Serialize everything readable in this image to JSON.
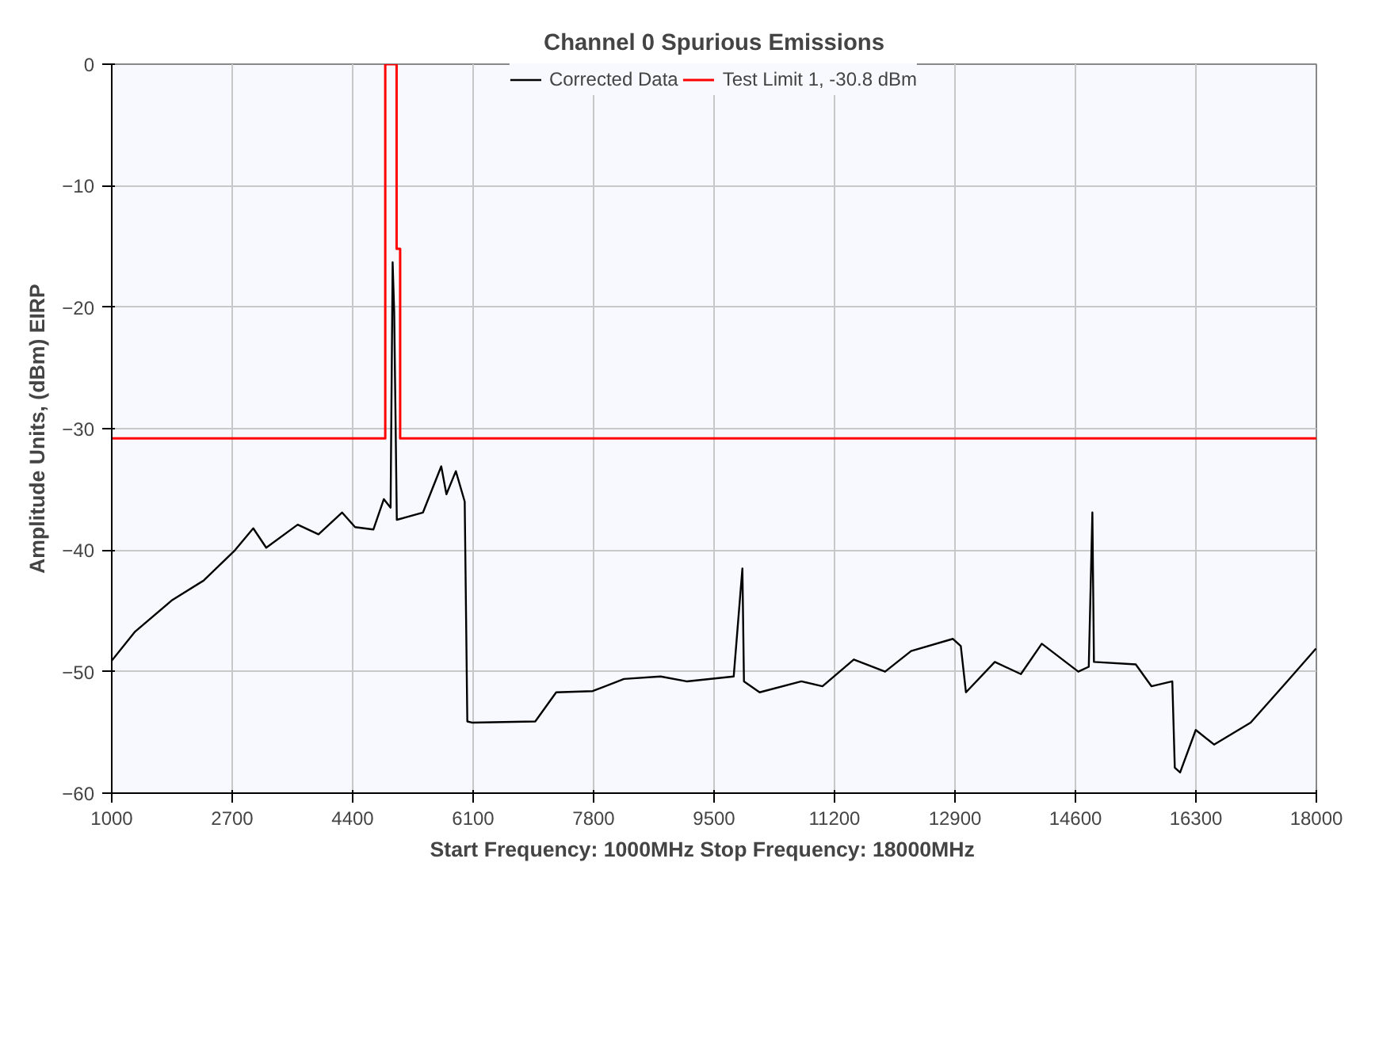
{
  "chart_data": {
    "type": "line",
    "title": "Channel 0 Spurious Emissions",
    "xlabel": "Start Frequency: 1000MHz     Stop Frequency: 18000MHz",
    "ylabel": "Amplitude Units, (dBm) EIRP",
    "xlim": [
      1000,
      18000
    ],
    "ylim": [
      -60,
      0
    ],
    "xticks": [
      1000,
      2700,
      4400,
      6100,
      7800,
      9500,
      11200,
      12900,
      14600,
      16300,
      18000
    ],
    "yticks": [
      -60,
      -50,
      -40,
      -30,
      -20,
      -10,
      0
    ],
    "grid": true,
    "legend": "top",
    "line_style": "solid",
    "marker": "none",
    "series": [
      {
        "name": "Corrected Data",
        "color": "#000000",
        "x": [
          1000,
          1330,
          1855,
          2297,
          2740,
          2997,
          3180,
          3624,
          3918,
          4250,
          4434,
          4692,
          4840,
          4935,
          4964,
          4986,
          5023,
          5392,
          5650,
          5723,
          5856,
          5981,
          6018,
          6092,
          6977,
          7272,
          7787,
          8229,
          8745,
          9113,
          9777,
          9900,
          9922,
          10143,
          10733,
          11030,
          11472,
          11914,
          12281,
          12871,
          12982,
          13055,
          13462,
          13830,
          14125,
          14640,
          14788,
          14839,
          14861,
          15451,
          15672,
          15967,
          16002,
          16077,
          16298,
          16556,
          17072,
          17588,
          17995
        ],
        "values": [
          -49.1,
          -46.7,
          -44.1,
          -42.5,
          -40,
          -38.2,
          -39.8,
          -37.9,
          -38.7,
          -36.9,
          -38.1,
          -38.3,
          -35.8,
          -36.5,
          -16.3,
          -20.4,
          -37.5,
          -36.9,
          -33.1,
          -35.4,
          -33.5,
          -36,
          -54.1,
          -54.2,
          -54.1,
          -51.7,
          -51.6,
          -50.6,
          -50.4,
          -50.8,
          -50.4,
          -41.5,
          -50.8,
          -51.7,
          -50.8,
          -51.2,
          -49,
          -50,
          -48.3,
          -47.3,
          -47.9,
          -51.7,
          -49.2,
          -50.2,
          -47.7,
          -50,
          -49.6,
          -36.9,
          -49.2,
          -49.4,
          -51.2,
          -50.8,
          -57.9,
          -58.3,
          -54.8,
          -56,
          -54.2,
          -50.8,
          -48.1
        ]
      },
      {
        "name": "Test Limit 1, -30.8 dBm",
        "color": "#ff0000",
        "x": [
          1000,
          4860,
          4860,
          5020,
          5020,
          5070,
          5070,
          18000
        ],
        "values": [
          -30.8,
          -30.8,
          0,
          0,
          -15.2,
          -15.2,
          -30.8,
          -30.8
        ]
      }
    ]
  }
}
